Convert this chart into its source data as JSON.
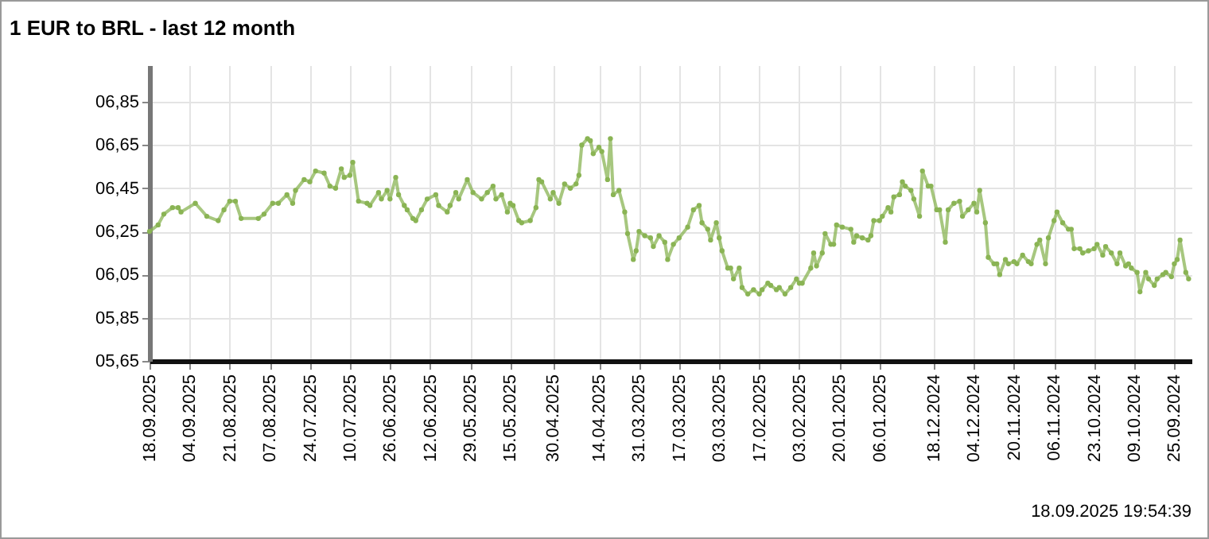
{
  "chart_data": {
    "type": "line",
    "title": "1 EUR to BRL - last 12 month",
    "annotations": [
      "18.09.2025 19:54:39"
    ],
    "color": "#8ab454",
    "marker": "circle",
    "line_style": "solid",
    "grid": true,
    "xlim": [
      "2025-09-18",
      "2024-09-19"
    ],
    "xticks": [
      {
        "value": "2025-09-18",
        "label": "18.09.2025"
      },
      {
        "value": "2025-09-04",
        "label": "04.09.2025"
      },
      {
        "value": "2025-08-21",
        "label": "21.08.2025"
      },
      {
        "value": "2025-08-07",
        "label": "07.08.2025"
      },
      {
        "value": "2025-07-24",
        "label": "24.07.2025"
      },
      {
        "value": "2025-07-10",
        "label": "10.07.2025"
      },
      {
        "value": "2025-06-26",
        "label": "26.06.2025"
      },
      {
        "value": "2025-06-12",
        "label": "12.06.2025"
      },
      {
        "value": "2025-05-29",
        "label": "29.05.2025"
      },
      {
        "value": "2025-05-15",
        "label": "15.05.2025"
      },
      {
        "value": "2025-04-30",
        "label": "30.04.2025"
      },
      {
        "value": "2025-04-14",
        "label": "14.04.2025"
      },
      {
        "value": "2025-03-31",
        "label": "31.03.2025"
      },
      {
        "value": "2025-03-17",
        "label": "17.03.2025"
      },
      {
        "value": "2025-03-03",
        "label": "03.03.2025"
      },
      {
        "value": "2025-02-17",
        "label": "17.02.2025"
      },
      {
        "value": "2025-02-03",
        "label": "03.02.2025"
      },
      {
        "value": "2025-01-20",
        "label": "20.01.2025"
      },
      {
        "value": "2025-01-06",
        "label": "06.01.2025"
      },
      {
        "value": "2024-12-18",
        "label": "18.12.2024"
      },
      {
        "value": "2024-12-04",
        "label": "04.12.2024"
      },
      {
        "value": "2024-11-20",
        "label": "20.11.2024"
      },
      {
        "value": "2024-11-06",
        "label": "06.11.2024"
      },
      {
        "value": "2024-10-23",
        "label": "23.10.2024"
      },
      {
        "value": "2024-10-09",
        "label": "09.10.2024"
      },
      {
        "value": "2024-09-25",
        "label": "25.09.2024"
      }
    ],
    "ylim": [
      5.65,
      7.02
    ],
    "yticks": [
      {
        "value": 5.65,
        "label": "05,65"
      },
      {
        "value": 5.85,
        "label": "05,85"
      },
      {
        "value": 6.05,
        "label": "06,05"
      },
      {
        "value": 6.25,
        "label": "06,25"
      },
      {
        "value": 6.45,
        "label": "06,45"
      },
      {
        "value": 6.65,
        "label": "06,65"
      },
      {
        "value": 6.85,
        "label": "06,85"
      }
    ],
    "x": [
      "2025-09-18",
      "2025-09-15",
      "2025-09-13",
      "2025-09-10",
      "2025-09-08",
      "2025-09-07",
      "2025-09-02",
      "2025-08-29",
      "2025-08-25",
      "2025-08-23",
      "2025-08-21",
      "2025-08-19",
      "2025-08-17",
      "2025-08-11",
      "2025-08-09",
      "2025-08-06",
      "2025-08-04",
      "2025-08-01",
      "2025-07-30",
      "2025-07-29",
      "2025-07-26",
      "2025-07-24",
      "2025-07-22",
      "2025-07-19",
      "2025-07-17",
      "2025-07-15",
      "2025-07-13",
      "2025-07-12",
      "2025-07-10",
      "2025-07-09",
      "2025-07-07",
      "2025-07-04",
      "2025-07-03",
      "2025-06-30",
      "2025-06-29",
      "2025-06-27",
      "2025-06-26",
      "2025-06-24",
      "2025-06-23",
      "2025-06-21",
      "2025-06-20",
      "2025-06-18",
      "2025-06-17",
      "2025-06-15",
      "2025-06-13",
      "2025-06-10",
      "2025-06-09",
      "2025-06-06",
      "2025-06-05",
      "2025-06-03",
      "2025-06-02",
      "2025-05-30",
      "2025-05-28",
      "2025-05-25",
      "2025-05-23",
      "2025-05-21",
      "2025-05-20",
      "2025-05-18",
      "2025-05-16",
      "2025-05-15",
      "2025-05-14",
      "2025-05-12",
      "2025-05-11",
      "2025-05-08",
      "2025-05-06",
      "2025-05-05",
      "2025-05-04",
      "2025-05-01",
      "2025-04-30",
      "2025-04-28",
      "2025-04-26",
      "2025-04-24",
      "2025-04-22",
      "2025-04-21",
      "2025-04-20",
      "2025-04-18",
      "2025-04-17",
      "2025-04-16",
      "2025-04-14",
      "2025-04-13",
      "2025-04-11",
      "2025-04-10",
      "2025-04-09",
      "2025-04-07",
      "2025-04-05",
      "2025-04-04",
      "2025-04-02",
      "2025-04-01",
      "2025-03-31",
      "2025-03-29",
      "2025-03-27",
      "2025-03-26",
      "2025-03-24",
      "2025-03-22",
      "2025-03-21",
      "2025-03-19",
      "2025-03-17",
      "2025-03-14",
      "2025-03-12",
      "2025-03-10",
      "2025-03-09",
      "2025-03-07",
      "2025-03-06",
      "2025-03-04",
      "2025-03-03",
      "2025-03-02",
      "2025-02-28",
      "2025-02-27",
      "2025-02-26",
      "2025-02-24",
      "2025-02-23",
      "2025-02-21",
      "2025-02-19",
      "2025-02-17",
      "2025-02-16",
      "2025-02-14",
      "2025-02-13",
      "2025-02-11",
      "2025-02-10",
      "2025-02-08",
      "2025-02-06",
      "2025-02-04",
      "2025-02-03",
      "2025-02-02",
      "2025-01-30",
      "2025-01-29",
      "2025-01-28",
      "2025-01-26",
      "2025-01-25",
      "2025-01-23",
      "2025-01-22",
      "2025-01-21",
      "2025-01-19",
      "2025-01-16",
      "2025-01-15",
      "2025-01-14",
      "2025-01-12",
      "2025-01-10",
      "2025-01-09",
      "2025-01-08",
      "2025-01-06",
      "2025-01-05",
      "2025-01-03",
      "2025-01-02",
      "2025-01-01",
      "2024-12-30",
      "2024-12-29",
      "2024-12-28",
      "2024-12-26",
      "2024-12-25",
      "2024-12-23",
      "2024-12-22",
      "2024-12-20",
      "2024-12-19",
      "2024-12-17",
      "2024-12-16",
      "2024-12-14",
      "2024-12-13",
      "2024-12-11",
      "2024-12-09",
      "2024-12-08",
      "2024-12-06",
      "2024-12-04",
      "2024-12-03",
      "2024-12-02",
      "2024-11-30",
      "2024-11-29",
      "2024-11-27",
      "2024-11-26",
      "2024-11-25",
      "2024-11-23",
      "2024-11-22",
      "2024-11-20",
      "2024-11-19",
      "2024-11-17",
      "2024-11-15",
      "2024-11-14",
      "2024-11-12",
      "2024-11-11",
      "2024-11-09",
      "2024-11-08",
      "2024-11-06",
      "2024-11-05",
      "2024-11-03",
      "2024-11-01",
      "2024-10-31",
      "2024-10-30",
      "2024-10-28",
      "2024-10-27",
      "2024-10-25",
      "2024-10-23",
      "2024-10-22",
      "2024-10-20",
      "2024-10-19",
      "2024-10-17",
      "2024-10-15",
      "2024-10-14",
      "2024-10-12",
      "2024-10-11",
      "2024-10-10",
      "2024-10-08",
      "2024-10-07",
      "2024-10-05",
      "2024-10-04",
      "2024-10-02",
      "2024-10-01",
      "2024-09-29",
      "2024-09-28",
      "2024-09-26",
      "2024-09-25",
      "2024-09-24",
      "2024-09-23",
      "2024-09-21",
      "2024-09-20"
    ],
    "values": [
      6.25,
      6.28,
      6.33,
      6.36,
      6.36,
      6.34,
      6.38,
      6.32,
      6.3,
      6.35,
      6.39,
      6.39,
      6.31,
      6.31,
      6.33,
      6.38,
      6.38,
      6.42,
      6.38,
      6.44,
      6.49,
      6.48,
      6.53,
      6.52,
      6.46,
      6.45,
      6.54,
      6.5,
      6.51,
      6.57,
      6.39,
      6.38,
      6.37,
      6.43,
      6.4,
      6.44,
      6.4,
      6.5,
      6.42,
      6.37,
      6.35,
      6.31,
      6.3,
      6.35,
      6.4,
      6.42,
      6.37,
      6.34,
      6.37,
      6.43,
      6.4,
      6.49,
      6.43,
      6.4,
      6.43,
      6.46,
      6.4,
      6.42,
      6.34,
      6.38,
      6.37,
      6.3,
      6.29,
      6.3,
      6.36,
      6.49,
      6.48,
      6.4,
      6.43,
      6.38,
      6.47,
      6.45,
      6.47,
      6.51,
      6.65,
      6.68,
      6.67,
      6.61,
      6.64,
      6.62,
      6.49,
      6.68,
      6.42,
      6.44,
      6.34,
      6.24,
      6.12,
      6.16,
      6.25,
      6.23,
      6.22,
      6.18,
      6.23,
      6.2,
      6.12,
      6.19,
      6.22,
      6.27,
      6.35,
      6.37,
      6.29,
      6.26,
      6.21,
      6.29,
      6.22,
      6.16,
      6.08,
      6.08,
      6.03,
      6.08,
      5.99,
      5.96,
      5.98,
      5.96,
      5.98,
      6.01,
      6.0,
      5.98,
      5.99,
      5.96,
      5.99,
      6.03,
      6.01,
      6.01,
      6.08,
      6.15,
      6.09,
      6.15,
      6.24,
      6.19,
      6.19,
      6.28,
      6.27,
      6.26,
      6.2,
      6.23,
      6.22,
      6.21,
      6.23,
      6.3,
      6.3,
      6.32,
      6.36,
      6.34,
      6.41,
      6.42,
      6.48,
      6.46,
      6.44,
      6.4,
      6.32,
      6.53,
      6.46,
      6.46,
      6.35,
      6.35,
      6.2,
      6.35,
      6.38,
      6.39,
      6.32,
      6.35,
      6.38,
      6.34,
      6.44,
      6.29,
      6.13,
      6.1,
      6.1,
      6.05,
      6.12,
      6.1,
      6.11,
      6.1,
      6.14,
      6.11,
      6.1,
      6.19,
      6.21,
      6.1,
      6.22,
      6.3,
      6.34,
      6.29,
      6.26,
      6.26,
      6.17,
      6.17,
      6.15,
      6.16,
      6.17,
      6.19,
      6.14,
      6.18,
      6.15,
      6.1,
      6.15,
      6.09,
      6.1,
      6.08,
      6.06,
      5.97,
      6.06,
      6.03,
      6.0,
      6.03,
      6.05,
      6.06,
      6.04,
      6.1,
      6.12,
      6.21,
      6.06,
      6.03
    ]
  }
}
